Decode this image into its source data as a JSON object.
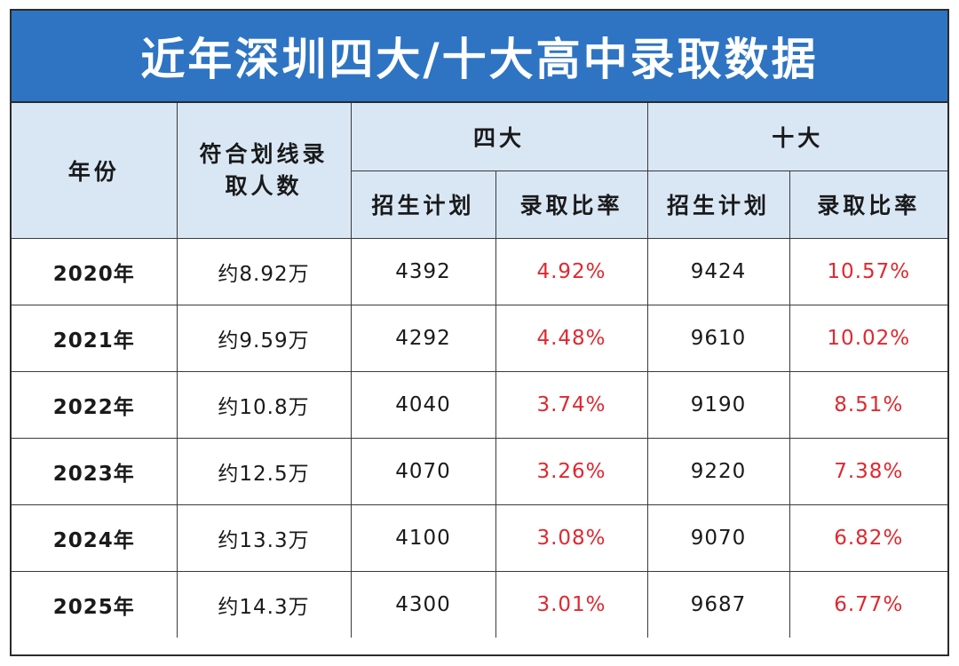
{
  "title": "近年深圳四大/十大高中录取数据",
  "table": {
    "headers": {
      "year": "年份",
      "qualified": "符合划线录取人数",
      "qualified_line1": "符合划线录",
      "qualified_line2": "取人数",
      "group_four": "四大",
      "group_ten": "十大",
      "plan": "招生计划",
      "rate": "录取比率"
    },
    "rows": [
      {
        "year": "2020年",
        "qualified": "约8.92万",
        "four_plan": "4392",
        "four_rate": "4.92%",
        "ten_plan": "9424",
        "ten_rate": "10.57%"
      },
      {
        "year": "2021年",
        "qualified": "约9.59万",
        "four_plan": "4292",
        "four_rate": "4.48%",
        "ten_plan": "9610",
        "ten_rate": "10.02%"
      },
      {
        "year": "2022年",
        "qualified": "约10.8万",
        "four_plan": "4040",
        "four_rate": "3.74%",
        "ten_plan": "9190",
        "ten_rate": "8.51%"
      },
      {
        "year": "2023年",
        "qualified": "约12.5万",
        "four_plan": "4070",
        "four_rate": "3.26%",
        "ten_plan": "9220",
        "ten_rate": "7.38%"
      },
      {
        "year": "2024年",
        "qualified": "约13.3万",
        "four_plan": "4100",
        "four_rate": "3.08%",
        "ten_plan": "9070",
        "ten_rate": "6.82%"
      },
      {
        "year": "2025年",
        "qualified": "约14.3万",
        "four_plan": "4300",
        "four_rate": "3.01%",
        "ten_plan": "9687",
        "ten_rate": "6.77%"
      }
    ]
  },
  "colors": {
    "title_bg": "#2e74c3",
    "header_bg": "#d9e7f5",
    "rate_text": "#e0282f"
  }
}
